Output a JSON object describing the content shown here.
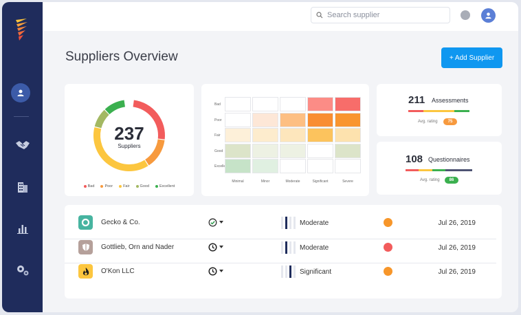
{
  "search": {
    "placeholder": "Search supplier"
  },
  "page_title": "Suppliers Overview",
  "add_button": "+ Add Supplier",
  "donut": {
    "value": "237",
    "label": "Suppliers",
    "segments": [
      {
        "name": "Bad",
        "color": "#f25c5c",
        "fraction": 0.25
      },
      {
        "name": "Poor",
        "color": "#f79a3e",
        "fraction": 0.14
      },
      {
        "name": "Fair",
        "color": "#fcc63f",
        "fraction": 0.38
      },
      {
        "name": "Good",
        "color": "#a3b862",
        "fraction": 0.09
      },
      {
        "name": "Excellent",
        "color": "#3bb04f",
        "fraction": 0.1
      }
    ],
    "legend": [
      {
        "label": "Bad",
        "color": "#f25c5c"
      },
      {
        "label": "Poor",
        "color": "#f79a3e"
      },
      {
        "label": "Fair",
        "color": "#fcc63f"
      },
      {
        "label": "Good",
        "color": "#a3b862"
      },
      {
        "label": "Excellent",
        "color": "#3bb04f"
      }
    ]
  },
  "heatmap": {
    "rows": [
      "Bad",
      "Poor",
      "Fair",
      "Good",
      "Excellent"
    ],
    "cols": [
      "Minimal",
      "Minor",
      "Moderate",
      "Significant",
      "Severe"
    ],
    "colors": [
      [
        "#ffffff",
        "#ffffff",
        "#ffffff",
        "#fc8c86",
        "#f76d6a"
      ],
      [
        "#ffffff",
        "#fde7d7",
        "#fdbf83",
        "#f98e32",
        "#f9952f"
      ],
      [
        "#fdf0d9",
        "#fdeccd",
        "#fde6bc",
        "#fcc35d",
        "#fde2ae"
      ],
      [
        "#dce4c9",
        "#edf1e3",
        "#edf1e3",
        "#ffffff",
        "#dce4c9"
      ],
      [
        "#c6e3c8",
        "#e0f0e1",
        "#ffffff",
        "#ffffff",
        "#ffffff"
      ]
    ]
  },
  "assessments": {
    "value": "211",
    "label": "Assessments",
    "avg_label": "Avg. rating",
    "avg": "75",
    "avg_color": "#f79a3e"
  },
  "questionnaires": {
    "value": "108",
    "label": "Questionnaires",
    "avg_label": "Avg. rating",
    "avg": "86",
    "avg_color": "#3bb04f"
  },
  "suppliers": [
    {
      "name": "Gecko & Co.",
      "icon": "circle-icon",
      "icon_bg": "#47b4a0",
      "status_icon": "check-circle-icon",
      "severity": "Moderate",
      "risk_color": "#f7962a",
      "date": "Jul 26, 2019"
    },
    {
      "name": "Gottlieb, Orn and Nader",
      "icon": "shield-icon",
      "icon_bg": "#b5a09a",
      "status_icon": "clock-icon",
      "severity": "Moderate",
      "risk_color": "#f25c5c",
      "date": "Jul 26, 2019"
    },
    {
      "name": "O'Kon LLC",
      "icon": "flame-icon",
      "icon_bg": "#fcc63f",
      "status_icon": "clock-icon",
      "severity": "Significant",
      "risk_color": "#f7962a",
      "date": "Jul 26, 2019"
    }
  ]
}
